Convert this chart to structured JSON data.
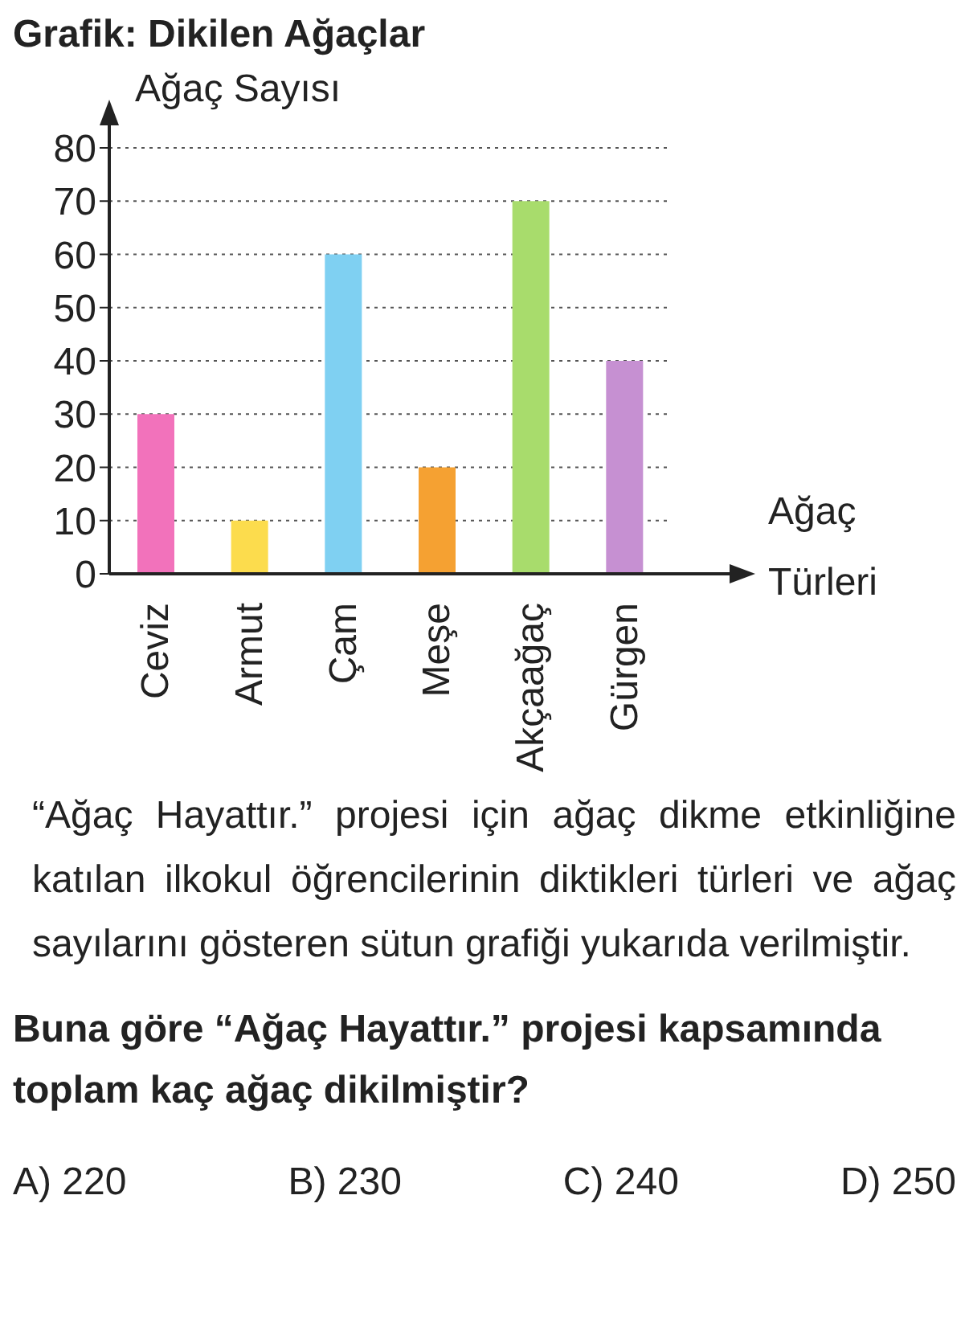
{
  "chart_data": {
    "type": "bar",
    "title": "Grafik: Dikilen Ağaçlar",
    "ylabel": "Ağaç Sayısı",
    "xlabel": "Ağaç Türleri",
    "categories": [
      "Ceviz",
      "Armut",
      "Çam",
      "Meşe",
      "Akçaağaç",
      "Gürgen"
    ],
    "values": [
      30,
      10,
      60,
      20,
      70,
      40
    ],
    "colors": [
      "#f272bb",
      "#fcdc4d",
      "#7fd0f2",
      "#f5a132",
      "#a8dc6c",
      "#c690d2"
    ],
    "ylim": [
      0,
      80
    ],
    "yticks": [
      0,
      10,
      20,
      30,
      40,
      50,
      60,
      70,
      80
    ],
    "grid": "y",
    "annotations": [
      "“Ağaç Hayattır.” projesi için ağaç dikme etkinliğine katılan ilkokul öğrencilerinin diktikleri türleri ve ağaç sayılarını gösteren sütun grafiği yukarıda verilmiştir.",
      "Buna göre “Ağaç Hayattır.” projesi kapsamında toplam kaç ağaç dikilmiştir?",
      "A) 220",
      "B) 230",
      "C) 240",
      "D) 250"
    ]
  }
}
